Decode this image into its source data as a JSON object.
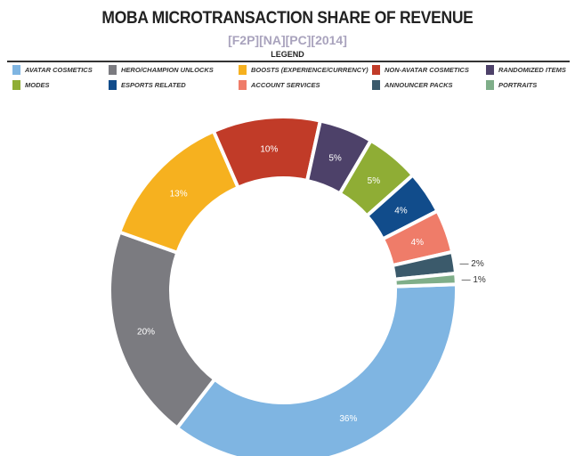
{
  "chart_data": {
    "type": "pie",
    "variant": "donut",
    "title": "MOBA MICROTRANSACTION SHARE OF REVENUE",
    "subtitle": "[F2P][NA][PC][2014]",
    "legend_title": "LEGEND",
    "legend_position": "top",
    "legend_order": [
      0,
      1,
      2,
      3,
      4,
      5,
      6,
      7,
      8,
      9
    ],
    "slices": [
      {
        "label": "AVATAR COSMETICS",
        "value": 36,
        "text": "36%",
        "color": "#7fb5e2"
      },
      {
        "label": "HERO/CHAMPION UNLOCKS",
        "value": 20,
        "text": "20%",
        "color": "#7b7b80"
      },
      {
        "label": "BOOSTS (EXPERIENCE/CURRENCY)",
        "value": 13,
        "text": "13%",
        "color": "#f6b11f"
      },
      {
        "label": "NON-AVATAR COSMETICS",
        "value": 10,
        "text": "10%",
        "color": "#c13b28"
      },
      {
        "label": "RANDOMIZED ITEMS",
        "value": 5,
        "text": "5%",
        "color": "#4d4169"
      },
      {
        "label": "MODES",
        "value": 5,
        "text": "5%",
        "color": "#8fad35"
      },
      {
        "label": "ESPORTS RELATED",
        "value": 4,
        "text": "4%",
        "color": "#114c8b"
      },
      {
        "label": "ACCOUNT SERVICES",
        "value": 4,
        "text": "4%",
        "color": "#ef7c69"
      },
      {
        "label": "ANNOUNCER PACKS",
        "value": 2,
        "text": "— 2%",
        "color": "#3b5a6b"
      },
      {
        "label": "PORTRAITS",
        "value": 1,
        "text": "— 1%",
        "color": "#7fae89"
      }
    ]
  }
}
